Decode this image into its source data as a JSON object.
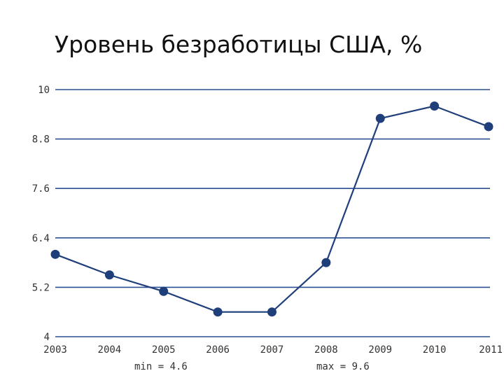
{
  "title": "Уровень безработицы США, %",
  "chart_data": {
    "type": "line",
    "title": "Уровень безработицы США, %",
    "xlabel": "",
    "ylabel": "",
    "x": [
      "2003",
      "2004",
      "2005",
      "2006",
      "2007",
      "2008",
      "2009",
      "2010",
      "2011"
    ],
    "series": [
      {
        "values": [
          6.0,
          5.5,
          5.1,
          4.6,
          4.6,
          5.8,
          9.3,
          9.6,
          9.1
        ]
      }
    ],
    "ylim": [
      4,
      10
    ],
    "yticks": [
      "4",
      "5.2",
      "6.4",
      "7.6",
      "8.8",
      "10"
    ],
    "grid": true,
    "line_color": "#1f3f7a",
    "grid_color": "#2b4f93",
    "stats": {
      "min_label": "min = 4.6",
      "max_label": "max = 9.6"
    }
  }
}
